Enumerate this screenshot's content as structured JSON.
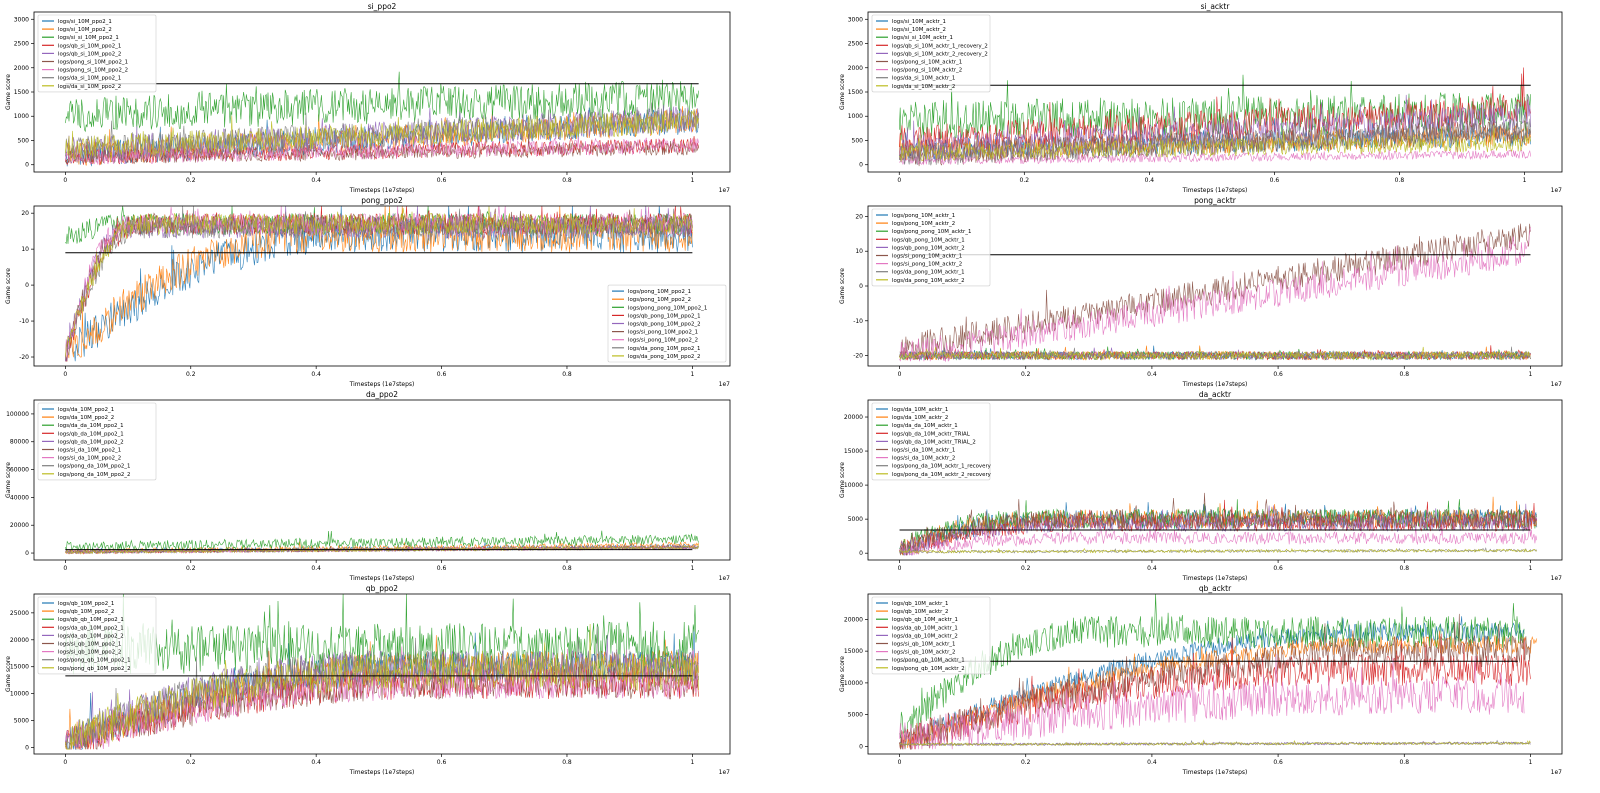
{
  "figure": {
    "background": "#ffffff"
  },
  "palette": [
    "#1f77b4",
    "#ff7f0e",
    "#2ca02c",
    "#d62728",
    "#9467bd",
    "#8c564b",
    "#e377c2",
    "#7f7f7f",
    "#bcbd22"
  ],
  "chart_data": [
    {
      "type": "line",
      "title": "si_ppo2",
      "xlabel": "Timesteps (1e7steps)",
      "ylabel": "Game score",
      "x_offset_label": "1e7",
      "xlim": [
        -0.05,
        1.06
      ],
      "ylim": [
        -150,
        3150
      ],
      "xticks": [
        0.0,
        0.2,
        0.4,
        0.6,
        0.8,
        1.0
      ],
      "yticks": [
        0,
        500,
        1000,
        1500,
        2000,
        2500,
        3000
      ],
      "legend": "upper left",
      "grid": false,
      "hline": {
        "y": 1670,
        "xmin": 0.0,
        "xmax": 1.01,
        "color": "#000000"
      },
      "series": [
        {
          "name": "logs/si_10M_ppo2_1",
          "color": "#1f77b4",
          "x_end": 1.01,
          "start": 200,
          "end": 900,
          "noise": 260
        },
        {
          "name": "logs/si_10M_ppo2_2",
          "color": "#ff7f0e",
          "x_end": 1.01,
          "start": 200,
          "end": 900,
          "noise": 260
        },
        {
          "name": "logs/si_si_10M_ppo2_1",
          "color": "#2ca02c",
          "x_end": 1.01,
          "start": 1050,
          "end": 1400,
          "noise": 380
        },
        {
          "name": "logs/qb_si_10M_ppo2_1",
          "color": "#d62728",
          "x_end": 1.01,
          "start": 150,
          "end": 400,
          "noise": 160
        },
        {
          "name": "logs/qb_si_10M_ppo2_2",
          "color": "#9467bd",
          "x_end": 1.01,
          "start": 300,
          "end": 950,
          "noise": 280
        },
        {
          "name": "logs/pong_si_10M_ppo2_1",
          "color": "#8c564b",
          "x_end": 1.01,
          "start": 150,
          "end": 350,
          "noise": 150
        },
        {
          "name": "logs/pong_si_10M_ppo2_2",
          "color": "#e377c2",
          "x_end": 1.01,
          "start": 150,
          "end": 400,
          "noise": 160
        },
        {
          "name": "logs/da_si_10M_ppo2_1",
          "color": "#7f7f7f",
          "x_end": 1.01,
          "start": 300,
          "end": 950,
          "noise": 280
        },
        {
          "name": "logs/da_si_10M_ppo2_2",
          "color": "#bcbd22",
          "x_end": 1.01,
          "start": 350,
          "end": 900,
          "noise": 250
        }
      ]
    },
    {
      "type": "line",
      "title": "si_acktr",
      "xlabel": "Timesteps (1e7steps)",
      "ylabel": "Game score",
      "x_offset_label": "1e7",
      "xlim": [
        -0.05,
        1.06
      ],
      "ylim": [
        -150,
        3150
      ],
      "xticks": [
        0.0,
        0.2,
        0.4,
        0.6,
        0.8,
        1.0
      ],
      "yticks": [
        0,
        500,
        1000,
        1500,
        2000,
        2500,
        3000
      ],
      "legend": "upper left",
      "grid": false,
      "hline": {
        "y": 1640,
        "xmin": 0.0,
        "xmax": 1.01,
        "color": "#000000"
      },
      "series": [
        {
          "name": "logs/si_10M_acktr_1",
          "color": "#1f77b4",
          "x_end": 1.01,
          "start": 300,
          "end": 600,
          "noise": 220
        },
        {
          "name": "logs/si_10M_acktr_2",
          "color": "#ff7f0e",
          "x_end": 1.01,
          "start": 300,
          "end": 600,
          "noise": 220
        },
        {
          "name": "logs/si_si_10M_acktr_1",
          "color": "#2ca02c",
          "x_end": 1.01,
          "start": 900,
          "end": 1100,
          "noise": 420
        },
        {
          "name": "logs/qb_si_10M_acktr_1_recovery_2",
          "color": "#d62728",
          "x_end": 1.01,
          "start": 500,
          "end": 1150,
          "noise": 320
        },
        {
          "name": "logs/qb_si_10M_acktr_2_recovery_2",
          "color": "#9467bd",
          "x_end": 1.01,
          "start": 300,
          "end": 1000,
          "noise": 300
        },
        {
          "name": "logs/pong_si_10M_acktr_1",
          "color": "#8c564b",
          "x_end": 1.01,
          "start": 200,
          "end": 700,
          "noise": 250
        },
        {
          "name": "logs/pong_si_10M_acktr_2",
          "color": "#e377c2",
          "x_end": 1.01,
          "start": 80,
          "end": 220,
          "noise": 90
        },
        {
          "name": "logs/da_si_10M_acktr_1",
          "color": "#7f7f7f",
          "x_end": 1.01,
          "start": 200,
          "end": 700,
          "noise": 250
        },
        {
          "name": "logs/da_si_10M_acktr_2",
          "color": "#bcbd22",
          "x_end": 1.01,
          "start": 250,
          "end": 450,
          "noise": 180
        }
      ]
    },
    {
      "type": "line",
      "title": "pong_ppo2",
      "xlabel": "Timesteps (1e7steps)",
      "ylabel": "Game score",
      "x_offset_label": "1e7",
      "xlim": [
        -0.05,
        1.06
      ],
      "ylim": [
        -22.5,
        22
      ],
      "xticks": [
        0.0,
        0.2,
        0.4,
        0.6,
        0.8,
        1.0
      ],
      "yticks": [
        -20,
        -10,
        0,
        10,
        20
      ],
      "legend": "lower right",
      "grid": false,
      "hline": {
        "y": 9,
        "xmin": 0.0,
        "xmax": 1.0,
        "color": "#000000"
      },
      "series": [
        {
          "name": "logs/pong_10M_ppo2_1",
          "color": "#1f77b4",
          "x_end": 1.0,
          "start": -20,
          "end": 14,
          "rise": 0.45,
          "noise": 5
        },
        {
          "name": "logs/pong_10M_ppo2_2",
          "color": "#ff7f0e",
          "x_end": 1.0,
          "start": -20,
          "end": 14,
          "rise": 0.4,
          "noise": 5
        },
        {
          "name": "logs/pong_pong_10M_ppo2_1",
          "color": "#2ca02c",
          "x_end": 1.0,
          "start": 13,
          "end": 17,
          "rise": 0.1,
          "noise": 3
        },
        {
          "name": "logs/qb_pong_10M_ppo2_1",
          "color": "#d62728",
          "x_end": 1.0,
          "start": -20,
          "end": 17,
          "rise": 0.12,
          "noise": 3
        },
        {
          "name": "logs/qb_pong_10M_ppo2_2",
          "color": "#9467bd",
          "x_end": 1.0,
          "start": -20,
          "end": 16,
          "rise": 0.1,
          "noise": 3
        },
        {
          "name": "logs/si_pong_10M_ppo2_1",
          "color": "#8c564b",
          "x_end": 1.0,
          "start": -20,
          "end": 17,
          "rise": 0.11,
          "noise": 3
        },
        {
          "name": "logs/si_pong_10M_ppo2_2",
          "color": "#e377c2",
          "x_end": 1.0,
          "start": -20,
          "end": 17,
          "rise": 0.1,
          "noise": 3
        },
        {
          "name": "logs/da_pong_10M_ppo2_1",
          "color": "#7f7f7f",
          "x_end": 1.0,
          "start": -20,
          "end": 16,
          "rise": 0.12,
          "noise": 3
        },
        {
          "name": "logs/da_pong_10M_ppo2_2",
          "color": "#bcbd22",
          "x_end": 1.0,
          "start": -19,
          "end": 17,
          "rise": 0.12,
          "noise": 3
        }
      ]
    },
    {
      "type": "line",
      "title": "pong_acktr",
      "xlabel": "Timesteps (1e7steps)",
      "ylabel": "Game score",
      "x_offset_label": "1e7",
      "xlim": [
        -0.05,
        1.05
      ],
      "ylim": [
        -23,
        23
      ],
      "xticks": [
        0.0,
        0.2,
        0.4,
        0.6,
        0.8,
        1.0
      ],
      "yticks": [
        -20,
        -10,
        0,
        10,
        20
      ],
      "legend": "upper left",
      "grid": false,
      "hline": {
        "y": 9,
        "xmin": 0.0,
        "xmax": 1.0,
        "color": "#000000"
      },
      "series": [
        {
          "name": "logs/pong_10M_acktr_1",
          "color": "#1f77b4",
          "x_end": 1.0,
          "start": -20,
          "end": -20,
          "noise": 1.2
        },
        {
          "name": "logs/pong_10M_acktr_2",
          "color": "#ff7f0e",
          "x_end": 1.0,
          "start": -20,
          "end": -20,
          "noise": 1.2
        },
        {
          "name": "logs/pong_pong_10M_acktr_1",
          "color": "#2ca02c",
          "x_end": 1.0,
          "start": -20,
          "end": -20,
          "noise": 1.2
        },
        {
          "name": "logs/qb_pong_10M_acktr_1",
          "color": "#d62728",
          "x_end": 1.0,
          "start": -20,
          "end": -20,
          "noise": 1.2
        },
        {
          "name": "logs/qb_pong_10M_acktr_2",
          "color": "#9467bd",
          "x_end": 1.0,
          "start": -20,
          "end": -20,
          "noise": 1.2
        },
        {
          "name": "logs/si_pong_10M_acktr_1",
          "color": "#8c564b",
          "x_end": 1.0,
          "start": -18,
          "end": 15,
          "noise": 4
        },
        {
          "name": "logs/si_pong_10M_acktr_2",
          "color": "#e377c2",
          "x_end": 1.0,
          "start": -20,
          "end": 10,
          "noise": 4
        },
        {
          "name": "logs/da_pong_10M_acktr_1",
          "color": "#7f7f7f",
          "x_end": 1.0,
          "start": -20,
          "end": -20,
          "noise": 1.2
        },
        {
          "name": "logs/da_pong_10M_acktr_2",
          "color": "#bcbd22",
          "x_end": 1.0,
          "start": -20,
          "end": -20,
          "noise": 1.2
        }
      ]
    },
    {
      "type": "line",
      "title": "da_ppo2",
      "xlabel": "Timesteps (1e7steps)",
      "ylabel": "Game score",
      "x_offset_label": "1e7",
      "xlim": [
        -0.05,
        1.06
      ],
      "ylim": [
        -5000,
        110000
      ],
      "xticks": [
        0.0,
        0.2,
        0.4,
        0.6,
        0.8,
        1.0
      ],
      "yticks": [
        0,
        20000,
        40000,
        60000,
        80000,
        100000
      ],
      "legend": "upper left",
      "grid": false,
      "hline": {
        "y": 2500,
        "xmin": 0.0,
        "xmax": 1.0,
        "color": "#000000"
      },
      "series": [
        {
          "name": "logs/da_10M_ppo2_1",
          "color": "#1f77b4",
          "x_end": 1.01,
          "start": 1000,
          "end": 5000,
          "noise": 1500
        },
        {
          "name": "logs/da_10M_ppo2_2",
          "color": "#ff7f0e",
          "x_end": 1.01,
          "start": 1000,
          "end": 6000,
          "noise": 2000
        },
        {
          "name": "logs/da_da_10M_ppo2_1",
          "color": "#2ca02c",
          "x_end": 1.01,
          "start": 5000,
          "end": 10000,
          "noise": 3500
        },
        {
          "name": "logs/qb_da_10M_ppo2_1",
          "color": "#d62728",
          "x_end": 1.01,
          "start": 800,
          "end": 4000,
          "noise": 1200
        },
        {
          "name": "logs/qb_da_10M_ppo2_2",
          "color": "#9467bd",
          "x_end": 1.01,
          "start": 800,
          "end": 4000,
          "noise": 1200
        },
        {
          "name": "logs/si_da_10M_ppo2_1",
          "color": "#8c564b",
          "x_end": 1.01,
          "start": 800,
          "end": 4000,
          "noise": 1200
        },
        {
          "name": "logs/si_da_10M_ppo2_2",
          "color": "#e377c2",
          "x_end": 1.01,
          "start": 800,
          "end": 4000,
          "noise": 1200
        },
        {
          "name": "logs/pong_da_10M_ppo2_1",
          "color": "#7f7f7f",
          "x_end": 1.01,
          "start": 800,
          "end": 4000,
          "noise": 1200
        },
        {
          "name": "logs/pong_da_10M_ppo2_2",
          "color": "#bcbd22",
          "x_end": 1.01,
          "start": 800,
          "end": 4000,
          "noise": 1200
        }
      ]
    },
    {
      "type": "line",
      "title": "da_acktr",
      "xlabel": "Timesteps (1e7steps)",
      "ylabel": "Game score",
      "x_offset_label": "1e7",
      "xlim": [
        -0.05,
        1.05
      ],
      "ylim": [
        -1000,
        22500
      ],
      "xticks": [
        0.0,
        0.2,
        0.4,
        0.6,
        0.8,
        1.0
      ],
      "yticks": [
        0,
        5000,
        10000,
        15000,
        20000
      ],
      "legend": "upper left",
      "grid": false,
      "hline": {
        "y": 3400,
        "xmin": 0.0,
        "xmax": 1.0,
        "color": "#000000"
      },
      "series": [
        {
          "name": "logs/da_10M_acktr_1",
          "color": "#1f77b4",
          "x_end": 1.01,
          "start": 500,
          "end": 5000,
          "rise": 0.25,
          "noise": 1400
        },
        {
          "name": "logs/da_10M_acktr_2",
          "color": "#ff7f0e",
          "x_end": 1.01,
          "start": 500,
          "end": 5000,
          "rise": 0.25,
          "noise": 1400
        },
        {
          "name": "logs/da_da_10M_acktr_1",
          "color": "#2ca02c",
          "x_end": 1.01,
          "start": 800,
          "end": 5000,
          "rise": 0.2,
          "noise": 1500
        },
        {
          "name": "logs/qb_da_10M_acktr_TRIAL",
          "color": "#d62728",
          "x_end": 1.01,
          "start": 500,
          "end": 4500,
          "rise": 0.3,
          "noise": 1300
        },
        {
          "name": "logs/qb_da_10M_acktr_TRIAL_2",
          "color": "#9467bd",
          "x_end": 1.01,
          "start": 500,
          "end": 4500,
          "rise": 0.3,
          "noise": 1300
        },
        {
          "name": "logs/si_da_10M_acktr_1",
          "color": "#8c564b",
          "x_end": 1.01,
          "start": 500,
          "end": 5000,
          "rise": 0.25,
          "noise": 1500
        },
        {
          "name": "logs/si_da_10M_acktr_2",
          "color": "#e377c2",
          "x_end": 1.01,
          "start": 300,
          "end": 2200,
          "rise": 0.3,
          "noise": 900
        },
        {
          "name": "logs/pong_da_10M_acktr_1_recovery",
          "color": "#7f7f7f",
          "x_end": 1.01,
          "start": 200,
          "end": 400,
          "noise": 200
        },
        {
          "name": "logs/pong_da_10M_acktr_2_recovery",
          "color": "#bcbd22",
          "x_end": 1.01,
          "start": 200,
          "end": 400,
          "noise": 200
        }
      ]
    },
    {
      "type": "line",
      "title": "qb_ppo2",
      "xlabel": "Timesteps (1e7steps)",
      "ylabel": "Game score",
      "x_offset_label": "1e7",
      "xlim": [
        -0.05,
        1.06
      ],
      "ylim": [
        -1200,
        28500
      ],
      "xticks": [
        0.0,
        0.2,
        0.4,
        0.6,
        0.8,
        1.0
      ],
      "yticks": [
        0,
        5000,
        10000,
        15000,
        20000,
        25000
      ],
      "legend": "upper left",
      "grid": false,
      "hline": {
        "y": 13300,
        "xmin": 0.0,
        "xmax": 1.0,
        "color": "#000000"
      },
      "series": [
        {
          "name": "logs/qb_10M_ppo2_1",
          "color": "#1f77b4",
          "x_end": 1.01,
          "start": 500,
          "end": 15000,
          "rise": 0.6,
          "noise": 3000
        },
        {
          "name": "logs/qb_10M_ppo2_2",
          "color": "#ff7f0e",
          "x_end": 1.01,
          "start": 500,
          "end": 15000,
          "rise": 0.6,
          "noise": 3000
        },
        {
          "name": "logs/qb_qb_10M_ppo2_1",
          "color": "#2ca02c",
          "x_end": 1.01,
          "start": 18000,
          "end": 19000,
          "noise": 4500
        },
        {
          "name": "logs/da_qb_10M_ppo2_1",
          "color": "#d62728",
          "x_end": 1.01,
          "start": 500,
          "end": 12000,
          "rise": 0.6,
          "noise": 3000
        },
        {
          "name": "logs/da_qb_10M_ppo2_2",
          "color": "#9467bd",
          "x_end": 1.01,
          "start": 1000,
          "end": 15000,
          "rise": 0.5,
          "noise": 3000
        },
        {
          "name": "logs/si_qb_10M_ppo2_1",
          "color": "#8c564b",
          "x_end": 1.01,
          "start": 500,
          "end": 12000,
          "rise": 0.6,
          "noise": 3000
        },
        {
          "name": "logs/si_qb_10M_ppo2_2",
          "color": "#e377c2",
          "x_end": 1.01,
          "start": 500,
          "end": 12000,
          "rise": 0.6,
          "noise": 3000
        },
        {
          "name": "logs/pong_qb_10M_ppo2_1",
          "color": "#7f7f7f",
          "x_end": 1.01,
          "start": 1000,
          "end": 15000,
          "rise": 0.5,
          "noise": 3000
        },
        {
          "name": "logs/pong_qb_10M_ppo2_2",
          "color": "#bcbd22",
          "x_end": 1.01,
          "start": 1000,
          "end": 14000,
          "rise": 0.5,
          "noise": 3500
        }
      ]
    },
    {
      "type": "line",
      "title": "qb_acktr",
      "xlabel": "Timesteps (1e7steps)",
      "ylabel": "Game score",
      "x_offset_label": "1e7",
      "xlim": [
        -0.05,
        1.05
      ],
      "ylim": [
        -1200,
        24000
      ],
      "xticks": [
        0.0,
        0.2,
        0.4,
        0.6,
        0.8,
        1.0
      ],
      "yticks": [
        0,
        5000,
        10000,
        15000,
        20000
      ],
      "legend": "upper left",
      "grid": false,
      "hline": {
        "y": 13400,
        "xmin": 0.0,
        "xmax": 0.98,
        "color": "#000000"
      },
      "series": [
        {
          "name": "logs/qb_10M_acktr_1",
          "color": "#1f77b4",
          "x_end": 0.99,
          "start": 500,
          "end": 18000,
          "rise": 0.8,
          "noise": 1500
        },
        {
          "name": "logs/qb_10M_acktr_2",
          "color": "#ff7f0e",
          "x_end": 1.01,
          "start": 500,
          "end": 16000,
          "rise": 0.8,
          "noise": 1500
        },
        {
          "name": "logs/qb_qb_10M_acktr_1",
          "color": "#2ca02c",
          "x_end": 0.99,
          "start": 2000,
          "end": 18000,
          "rise": 0.3,
          "noise": 2500
        },
        {
          "name": "logs/da_qb_10M_acktr_1",
          "color": "#d62728",
          "x_end": 1.0,
          "start": 500,
          "end": 12000,
          "rise": 0.7,
          "noise": 2500
        },
        {
          "name": "logs/da_qb_10M_acktr_2",
          "color": "#9467bd",
          "x_end": 1.0,
          "start": 300,
          "end": 500,
          "noise": 200
        },
        {
          "name": "logs/si_qb_10M_acktr_1",
          "color": "#8c564b",
          "x_end": 1.0,
          "start": 500,
          "end": 15000,
          "rise": 0.85,
          "noise": 2500
        },
        {
          "name": "logs/si_qb_10M_acktr_2",
          "color": "#e377c2",
          "x_end": 0.99,
          "start": 1000,
          "end": 8000,
          "rise": 0.8,
          "noise": 3000
        },
        {
          "name": "logs/pong_qb_10M_acktr_1",
          "color": "#7f7f7f",
          "x_end": 1.0,
          "start": 300,
          "end": 500,
          "noise": 200
        },
        {
          "name": "logs/pong_qb_10M_acktr_2",
          "color": "#bcbd22",
          "x_end": 1.0,
          "start": 300,
          "end": 500,
          "noise": 200
        }
      ]
    }
  ]
}
